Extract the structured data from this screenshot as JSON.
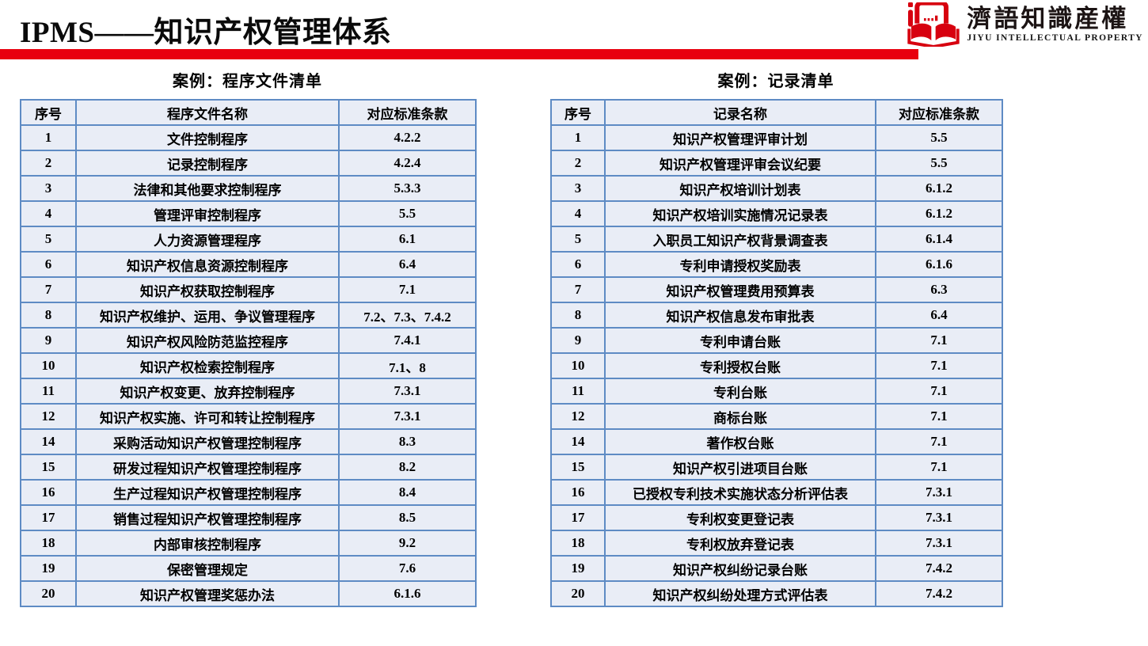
{
  "header": {
    "title": "IPMS——知识产权管理体系",
    "accent_color": "#e8000e"
  },
  "logo": {
    "name_cn": "濟語知識産權",
    "name_en": "JIYU INTELLECTUAL PROPERTY",
    "icon": "open-book-icon",
    "brand_color": "#d7000f"
  },
  "table_style": {
    "cell_bg": "#e9edf6",
    "border_color": "#5e8bc4"
  },
  "left_table": {
    "caption": "案例：程序文件清单",
    "columns": [
      "序号",
      "程序文件名称",
      "对应标准条款"
    ],
    "rows": [
      [
        "1",
        "文件控制程序",
        "4.2.2"
      ],
      [
        "2",
        "记录控制程序",
        "4.2.4"
      ],
      [
        "3",
        "法律和其他要求控制程序",
        "5.3.3"
      ],
      [
        "4",
        "管理评审控制程序",
        "5.5"
      ],
      [
        "5",
        "人力资源管理程序",
        "6.1"
      ],
      [
        "6",
        "知识产权信息资源控制程序",
        "6.4"
      ],
      [
        "7",
        "知识产权获取控制程序",
        "7.1"
      ],
      [
        "8",
        "知识产权维护、运用、争议管理程序",
        "7.2、7.3、7.4.2"
      ],
      [
        "9",
        "知识产权风险防范监控程序",
        "7.4.1"
      ],
      [
        "10",
        "知识产权检索控制程序",
        "7.1、8"
      ],
      [
        "11",
        "知识产权变更、放弃控制程序",
        "7.3.1"
      ],
      [
        "12",
        "知识产权实施、许可和转让控制程序",
        "7.3.1"
      ],
      [
        "14",
        "采购活动知识产权管理控制程序",
        "8.3"
      ],
      [
        "15",
        "研发过程知识产权管理控制程序",
        "8.2"
      ],
      [
        "16",
        "生产过程知识产权管理控制程序",
        "8.4"
      ],
      [
        "17",
        "销售过程知识产权管理控制程序",
        "8.5"
      ],
      [
        "18",
        "内部审核控制程序",
        "9.2"
      ],
      [
        "19",
        "保密管理规定",
        "7.6"
      ],
      [
        "20",
        "知识产权管理奖惩办法",
        "6.1.6"
      ]
    ]
  },
  "right_table": {
    "caption": "案例：记录清单",
    "columns": [
      "序号",
      "记录名称",
      "对应标准条款"
    ],
    "rows": [
      [
        "1",
        "知识产权管理评审计划",
        "5.5"
      ],
      [
        "2",
        "知识产权管理评审会议纪要",
        "5.5"
      ],
      [
        "3",
        "知识产权培训计划表",
        "6.1.2"
      ],
      [
        "4",
        "知识产权培训实施情况记录表",
        "6.1.2"
      ],
      [
        "5",
        "入职员工知识产权背景调查表",
        "6.1.4"
      ],
      [
        "6",
        "专利申请授权奖励表",
        "6.1.6"
      ],
      [
        "7",
        "知识产权管理费用预算表",
        "6.3"
      ],
      [
        "8",
        "知识产权信息发布审批表",
        "6.4"
      ],
      [
        "9",
        "专利申请台账",
        "7.1"
      ],
      [
        "10",
        "专利授权台账",
        "7.1"
      ],
      [
        "11",
        "专利台账",
        "7.1"
      ],
      [
        "12",
        "商标台账",
        "7.1"
      ],
      [
        "14",
        "著作权台账",
        "7.1"
      ],
      [
        "15",
        "知识产权引进项目台账",
        "7.1"
      ],
      [
        "16",
        "已授权专利技术实施状态分析评估表",
        "7.3.1"
      ],
      [
        "17",
        "专利权变更登记表",
        "7.3.1"
      ],
      [
        "18",
        "专利权放弃登记表",
        "7.3.1"
      ],
      [
        "19",
        "知识产权纠纷记录台账",
        "7.4.2"
      ],
      [
        "20",
        "知识产权纠纷处理方式评估表",
        "7.4.2"
      ]
    ]
  }
}
